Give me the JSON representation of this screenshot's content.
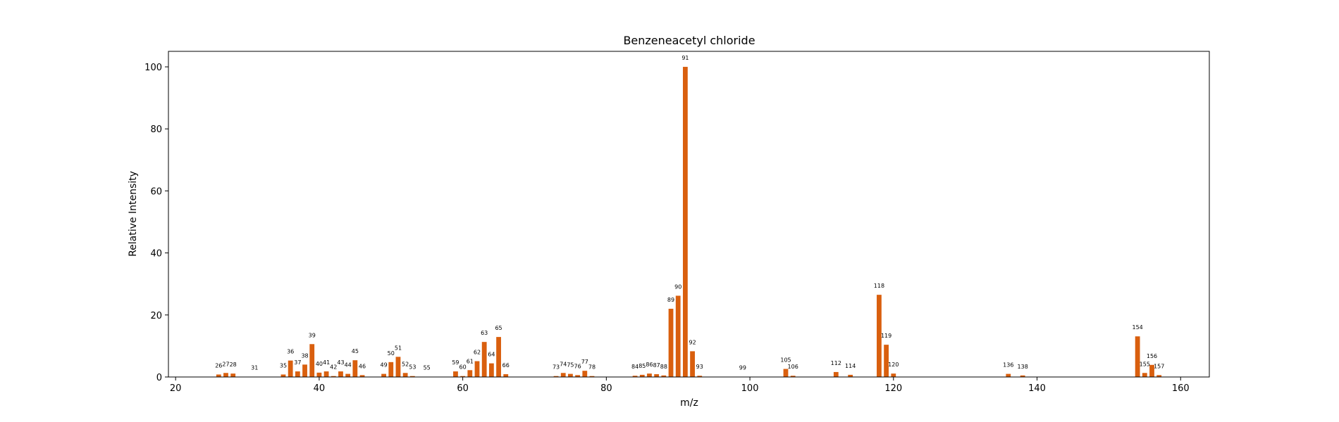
{
  "chart_data": {
    "type": "bar",
    "title": "Benzeneacetyl chloride",
    "xlabel": "m/z",
    "ylabel": "Relative Intensity",
    "xlim": [
      19,
      164
    ],
    "ylim": [
      0,
      105
    ],
    "x_ticks": [
      20,
      40,
      60,
      80,
      100,
      120,
      140,
      160
    ],
    "y_ticks": [
      0,
      20,
      40,
      60,
      80,
      100
    ],
    "grid": false,
    "bar_color": "#d95f0e",
    "x": [
      26,
      27,
      28,
      31,
      35,
      36,
      37,
      38,
      39,
      40,
      41,
      42,
      43,
      44,
      45,
      46,
      49,
      50,
      51,
      52,
      53,
      55,
      59,
      60,
      61,
      62,
      63,
      64,
      65,
      66,
      73,
      74,
      75,
      76,
      77,
      78,
      84,
      85,
      86,
      87,
      88,
      89,
      90,
      91,
      92,
      93,
      99,
      105,
      106,
      112,
      114,
      118,
      119,
      120,
      136,
      138,
      154,
      155,
      156,
      157
    ],
    "values": [
      0.8,
      1.3,
      1.1,
      0.1,
      0.8,
      5.3,
      1.8,
      4.0,
      10.6,
      1.4,
      1.8,
      0.3,
      1.8,
      1.0,
      5.4,
      0.6,
      1.0,
      4.8,
      6.5,
      1.3,
      0.3,
      0.1,
      1.8,
      0.3,
      2.2,
      5.1,
      11.3,
      4.4,
      12.9,
      0.9,
      0.3,
      1.3,
      1.0,
      0.6,
      2.0,
      0.3,
      0.4,
      0.7,
      1.1,
      0.9,
      0.5,
      22.0,
      26.2,
      100.0,
      8.3,
      0.4,
      0.1,
      2.6,
      0.4,
      1.6,
      0.7,
      26.5,
      10.4,
      1.1,
      1.0,
      0.5,
      13.1,
      1.3,
      3.9,
      0.6
    ],
    "labels": [
      "26",
      "27",
      "28",
      "31",
      "35",
      "36",
      "37",
      "38",
      "39",
      "40",
      "41",
      "42",
      "43",
      "44",
      "45",
      "46",
      "49",
      "50",
      "51",
      "52",
      "53",
      "55",
      "59",
      "60",
      "61",
      "62",
      "63",
      "64",
      "65",
      "66",
      "73",
      "74",
      "75",
      "76",
      "77",
      "78",
      "84",
      "85",
      "86",
      "87",
      "88",
      "89",
      "90",
      "91",
      "92",
      "93",
      "99",
      "105",
      "106",
      "112",
      "114",
      "118",
      "119",
      "120",
      "136",
      "138",
      "154",
      "155",
      "156",
      "157"
    ]
  }
}
